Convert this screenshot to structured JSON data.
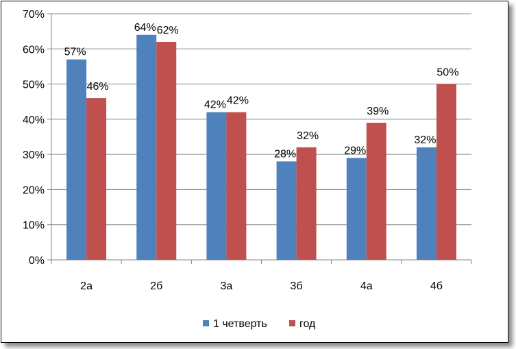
{
  "chart_data": {
    "type": "bar",
    "categories": [
      "2а",
      "2б",
      "3а",
      "3б",
      "4а",
      "4б"
    ],
    "series": [
      {
        "name": "1 четверть",
        "values": [
          57,
          64,
          42,
          28,
          29,
          32
        ],
        "labels": [
          "57%",
          "64%",
          "42%",
          "28%",
          "29%",
          "32%"
        ],
        "color": "#4F81BD"
      },
      {
        "name": "год",
        "values": [
          46,
          62,
          42,
          32,
          39,
          50
        ],
        "labels": [
          "46%",
          "62%",
          "42%",
          "32%",
          "39%",
          "50%"
        ],
        "color": "#C0504D"
      }
    ],
    "ylim": [
      0,
      70
    ],
    "yticks": [
      0,
      10,
      20,
      30,
      40,
      50,
      60,
      70
    ],
    "ytick_labels": [
      "0%",
      "10%",
      "20%",
      "30%",
      "40%",
      "50%",
      "60%",
      "70%"
    ],
    "grid": true,
    "legend": "bottom",
    "title": "",
    "xlabel": "",
    "ylabel": ""
  }
}
